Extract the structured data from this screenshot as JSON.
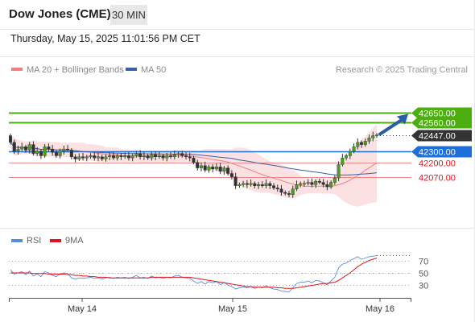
{
  "header": {
    "title": "Dow Jones (CME)",
    "timeframe": "30 MIN",
    "datetime": "Thursday, May 15, 2025 11:01:56 PM CET"
  },
  "colors": {
    "resistance": "#4caf0f",
    "pivot": "#1e6fd9",
    "support": "#e88a8a",
    "bollinger": "#f8c9c9",
    "ma50": "#3a5ea8",
    "ma20": "#f08080",
    "last": "#333333",
    "rsi": "#5b8be0",
    "rsi_ma": "#e0141c",
    "arrow": "#2a5ca8"
  },
  "chart_data": [
    {
      "type": "candlestick",
      "title": "",
      "legend": [
        {
          "label": "MA 20 + Bollinger Bands",
          "color": "#f08080"
        },
        {
          "label": "MA 50",
          "color": "#3a5ea8"
        }
      ],
      "source": "Research © 2025 Trading Central",
      "ylim": [
        41720,
        42900
      ],
      "x_labels": [
        "May 14",
        "May 15",
        "May 16"
      ],
      "levels": [
        {
          "label": "42650.00",
          "value": 42650,
          "kind": "resistance"
        },
        {
          "label": "42560.00",
          "value": 42560,
          "kind": "resistance"
        },
        {
          "label": "42447.00",
          "value": 42447,
          "kind": "last"
        },
        {
          "label": "42300.00",
          "value": 42300,
          "kind": "pivot"
        },
        {
          "label": "42200.00",
          "value": 42200,
          "kind": "support"
        },
        {
          "label": "42070.00",
          "value": 42070,
          "kind": "support"
        }
      ],
      "close": [
        42380,
        42300,
        42320,
        42340,
        42310,
        42360,
        42280,
        42300,
        42260,
        42340,
        42320,
        42290,
        42260,
        42300,
        42320,
        42310,
        42250,
        42230,
        42250,
        42240,
        42250,
        42260,
        42240,
        42250,
        42230,
        42250,
        42260,
        42240,
        42260,
        42250,
        42260,
        42240,
        42260,
        42280,
        42250,
        42260,
        42240,
        42270,
        42250,
        42260,
        42240,
        42260,
        42250,
        42270,
        42280,
        42260,
        42250,
        42240,
        42200,
        42150,
        42170,
        42130,
        42160,
        42140,
        42160,
        42120,
        42150,
        42100,
        42070,
        41990,
        42000,
        42010,
        42000,
        42010,
        41990,
        42000,
        41990,
        42010,
        41990,
        41970,
        41960,
        41930,
        41920,
        41910,
        41960,
        42000,
        42010,
        42010,
        42020,
        42000,
        42030,
        42020,
        42000,
        41980,
        42020,
        42060,
        42180,
        42240,
        42260,
        42300,
        42340,
        42380,
        42360,
        42390,
        42420,
        42440,
        42447
      ],
      "rsi": {
        "legend": [
          {
            "label": "RSI",
            "color": "#5b8be0"
          },
          {
            "label": "9MA",
            "color": "#e0141c"
          }
        ],
        "ticks": [
          70,
          50,
          30
        ],
        "ylim": [
          15,
          85
        ],
        "values": [
          55,
          48,
          50,
          52,
          47,
          53,
          45,
          48,
          44,
          52,
          50,
          46,
          44,
          48,
          50,
          49,
          42,
          40,
          42,
          41,
          42,
          43,
          41,
          42,
          40,
          42,
          43,
          41,
          43,
          42,
          43,
          41,
          43,
          46,
          42,
          43,
          41,
          45,
          42,
          43,
          41,
          43,
          42,
          45,
          46,
          43,
          42,
          41,
          37,
          33,
          36,
          32,
          36,
          34,
          36,
          31,
          35,
          30,
          28,
          24,
          26,
          27,
          26,
          28,
          25,
          27,
          26,
          29,
          26,
          24,
          23,
          21,
          20,
          19,
          26,
          33,
          35,
          35,
          37,
          34,
          38,
          37,
          34,
          31,
          37,
          43,
          58,
          64,
          66,
          70,
          73,
          76,
          72,
          74,
          76,
          77,
          78
        ],
        "ma": [
          50,
          50,
          50,
          50,
          50,
          50,
          49,
          49,
          49,
          49,
          48,
          48,
          48,
          48,
          48,
          47,
          47,
          46,
          46,
          45,
          45,
          44,
          44,
          43,
          43,
          43,
          42,
          42,
          42,
          42,
          42,
          42,
          42,
          42,
          42,
          42,
          42,
          43,
          43,
          43,
          43,
          43,
          43,
          43,
          43,
          43,
          43,
          43,
          42,
          41,
          40,
          39,
          38,
          37,
          36,
          35,
          34,
          33,
          32,
          31,
          30,
          29,
          28,
          28,
          27,
          27,
          27,
          27,
          27,
          27,
          26,
          26,
          25,
          25,
          25,
          26,
          27,
          28,
          29,
          30,
          31,
          32,
          33,
          33,
          34,
          35,
          38,
          42,
          46,
          50,
          55,
          60,
          64,
          67,
          70,
          72,
          74
        ]
      }
    }
  ]
}
